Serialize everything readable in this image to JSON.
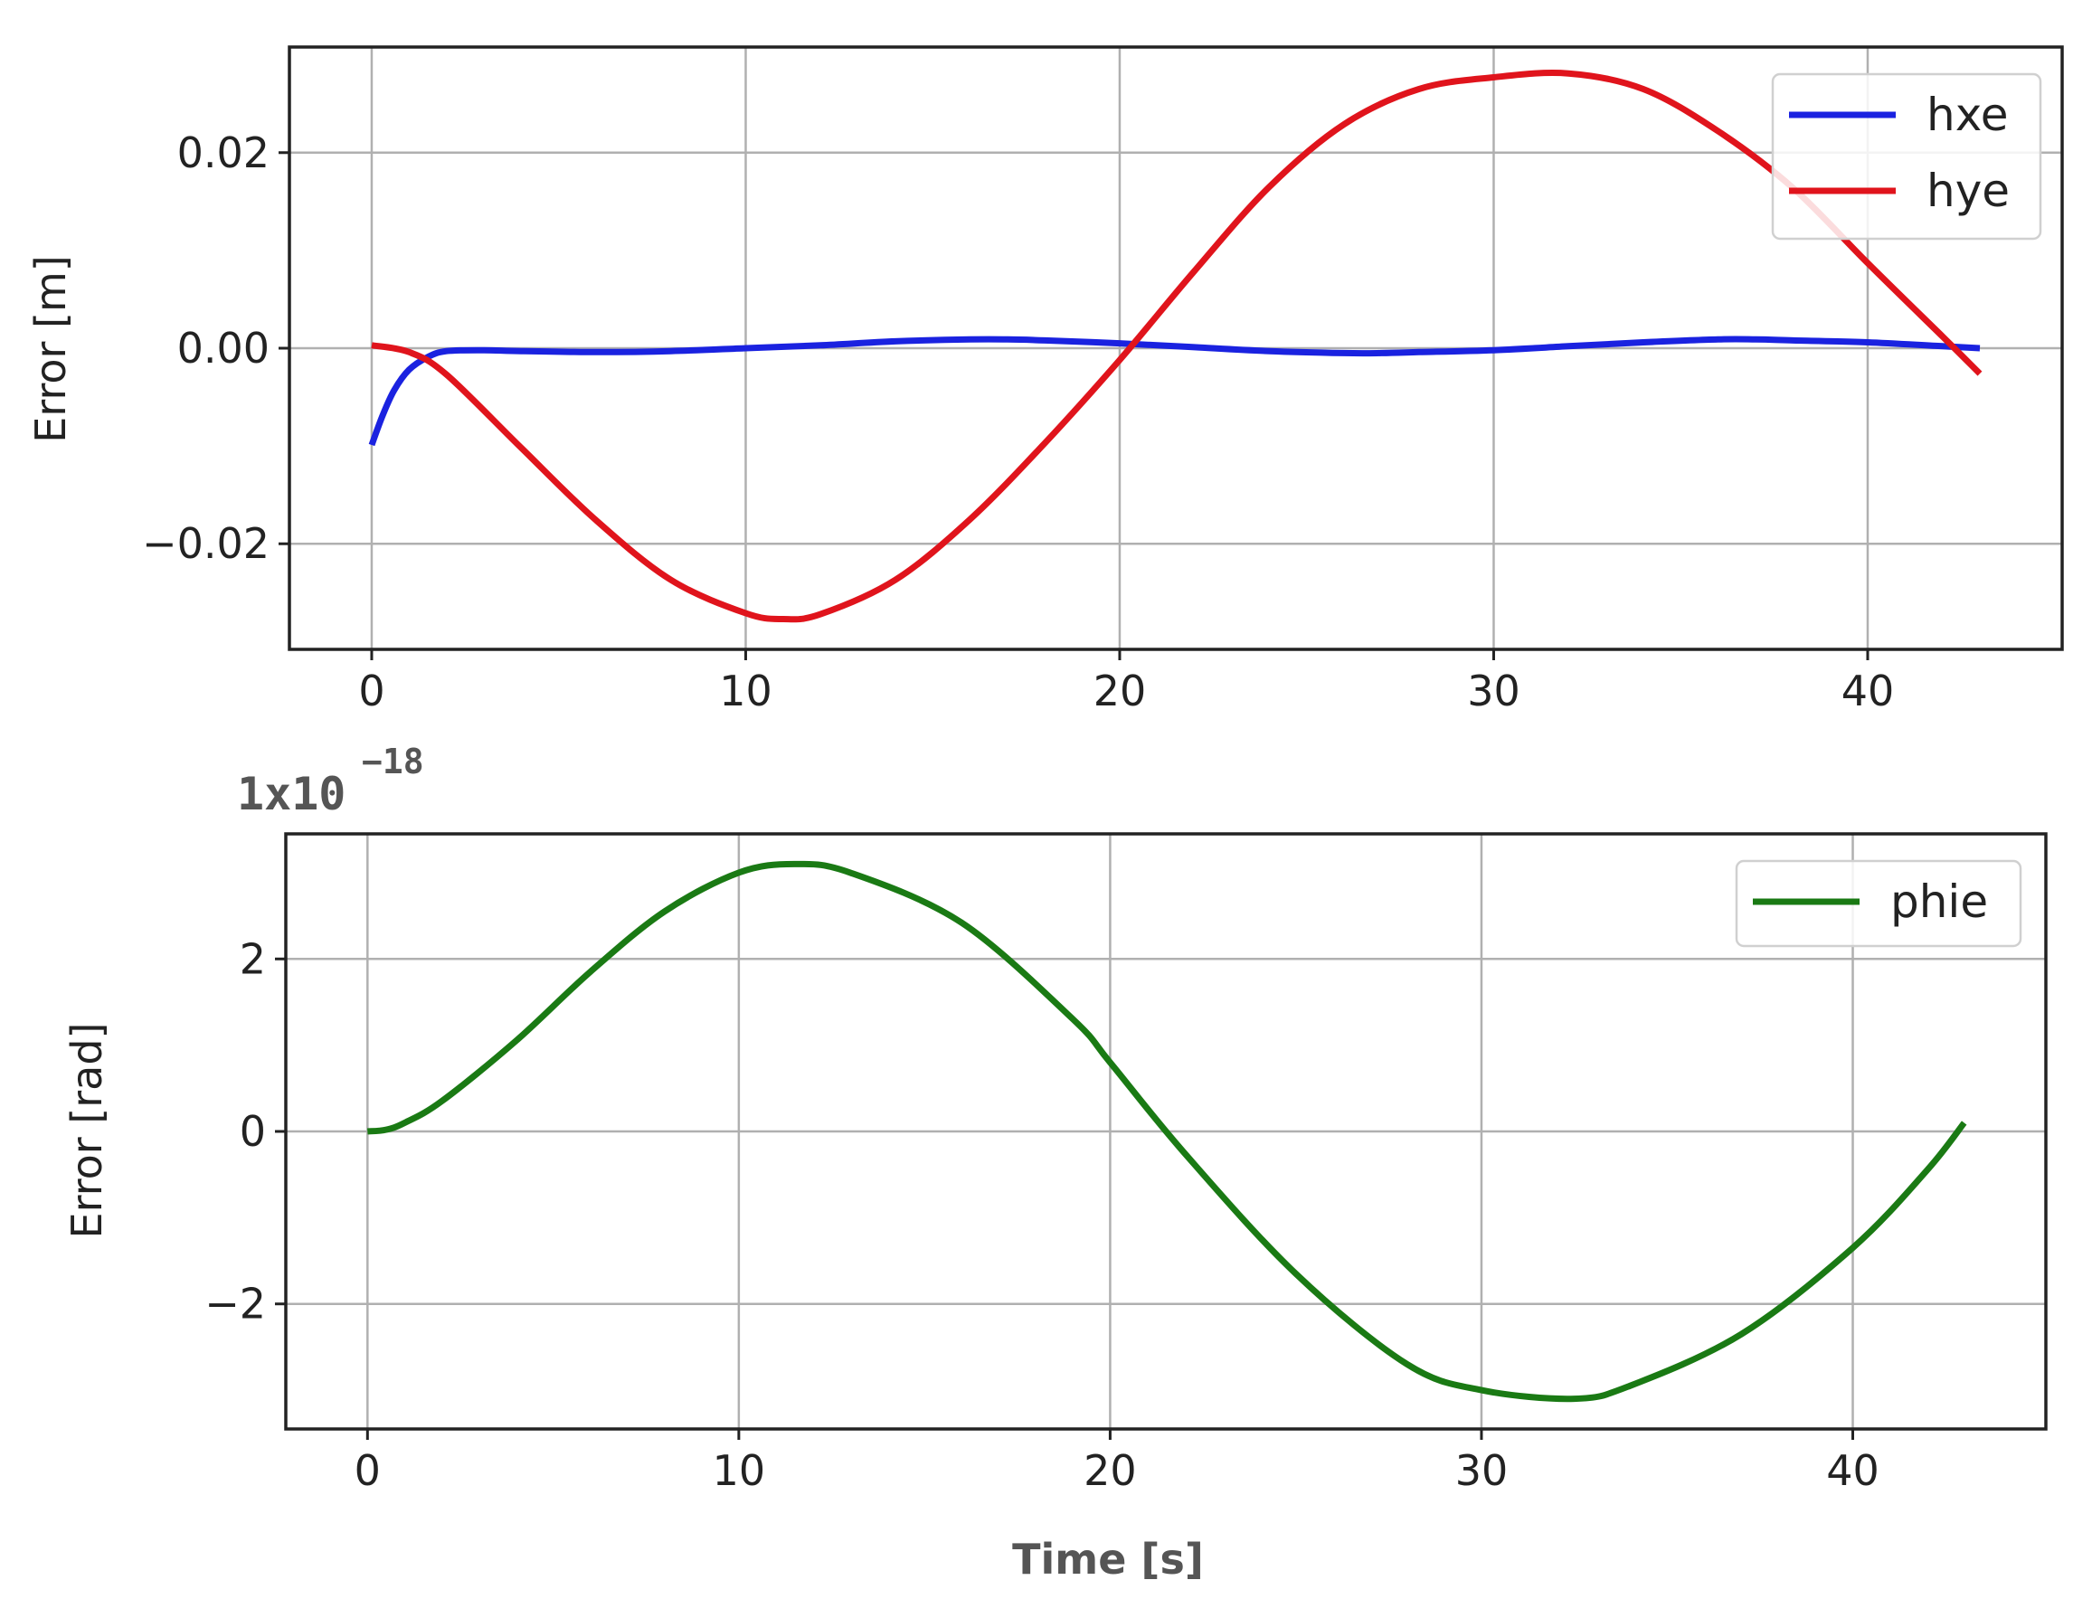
{
  "chart_data": [
    {
      "type": "line",
      "ylabel": "Error [m]",
      "xlabel": "",
      "xlim": [
        -2.2,
        45.2
      ],
      "ylim": [
        -0.0308,
        0.0308
      ],
      "xticks": [
        0,
        10,
        20,
        30,
        40
      ],
      "xtick_labels": [
        "0",
        "10",
        "20",
        "30",
        "40"
      ],
      "yticks": [
        -0.02,
        0.0,
        0.02
      ],
      "ytick_labels": [
        "−0.02",
        "0.00",
        "0.02"
      ],
      "grid": true,
      "legend_position": "top-right",
      "series": [
        {
          "name": "hxe",
          "color": "#1a22e0",
          "x": [
            0,
            0.3,
            0.6,
            1,
            1.5,
            2,
            3,
            4,
            6,
            8,
            10,
            12,
            14,
            16,
            17,
            18,
            20,
            22,
            24,
            26,
            27,
            28,
            30,
            32,
            34,
            36,
            37,
            38,
            40,
            42,
            43
          ],
          "y": [
            -0.0099,
            -0.0068,
            -0.0043,
            -0.0022,
            -0.0009,
            -0.0003,
            -0.0002,
            -0.0003,
            -0.0004,
            -0.0003,
            0.0,
            0.0003,
            0.0007,
            0.0009,
            0.0009,
            0.0008,
            0.0005,
            0.0001,
            -0.0003,
            -0.0005,
            -0.0005,
            -0.0004,
            -0.0002,
            0.0002,
            0.0006,
            0.0009,
            0.0009,
            0.0008,
            0.0006,
            0.0002,
            0.0
          ]
        },
        {
          "name": "hye",
          "color": "#e0141c",
          "x": [
            0,
            1,
            2,
            4,
            6,
            8,
            10,
            11,
            12,
            14,
            16,
            18,
            20,
            22,
            24,
            26,
            28,
            30,
            32,
            34,
            36,
            38,
            40,
            42,
            43
          ],
          "y": [
            0.0003,
            -0.0004,
            -0.0027,
            -0.0102,
            -0.0176,
            -0.0237,
            -0.0271,
            -0.0277,
            -0.0272,
            -0.0237,
            -0.0175,
            -0.0097,
            -0.0012,
            0.0079,
            0.0165,
            0.0229,
            0.0265,
            0.0277,
            0.0281,
            0.0265,
            0.0222,
            0.0164,
            0.0087,
            0.0012,
            -0.0026
          ]
        }
      ]
    },
    {
      "type": "line",
      "ylabel": "Error [rad]",
      "xlabel": "Time [s]",
      "xlim": [
        -2.2,
        45.2
      ],
      "ylim": [
        -3.45,
        3.45
      ],
      "xticks": [
        0,
        10,
        20,
        30,
        40
      ],
      "xtick_labels": [
        "0",
        "10",
        "20",
        "30",
        "40"
      ],
      "yticks": [
        -2,
        0,
        2
      ],
      "ytick_labels": [
        "−2",
        "0",
        "2"
      ],
      "offset_text": "1x10",
      "offset_exponent": "−18",
      "grid": true,
      "legend_position": "top-right",
      "series": [
        {
          "name": "phie",
          "color": "#1a7a14",
          "x": [
            0,
            0.5,
            1,
            2,
            4,
            6,
            8,
            10,
            11.5,
            13,
            16,
            19,
            20,
            22,
            25,
            28,
            30,
            32.5,
            34,
            37,
            40,
            42,
            43
          ],
          "y": [
            0.0,
            0.02,
            0.1,
            0.35,
            1.05,
            1.85,
            2.55,
            3.0,
            3.1,
            3.0,
            2.42,
            1.3,
            0.8,
            -0.25,
            -1.65,
            -2.7,
            -3.0,
            -3.1,
            -2.95,
            -2.35,
            -1.35,
            -0.45,
            0.1
          ]
        }
      ]
    }
  ]
}
